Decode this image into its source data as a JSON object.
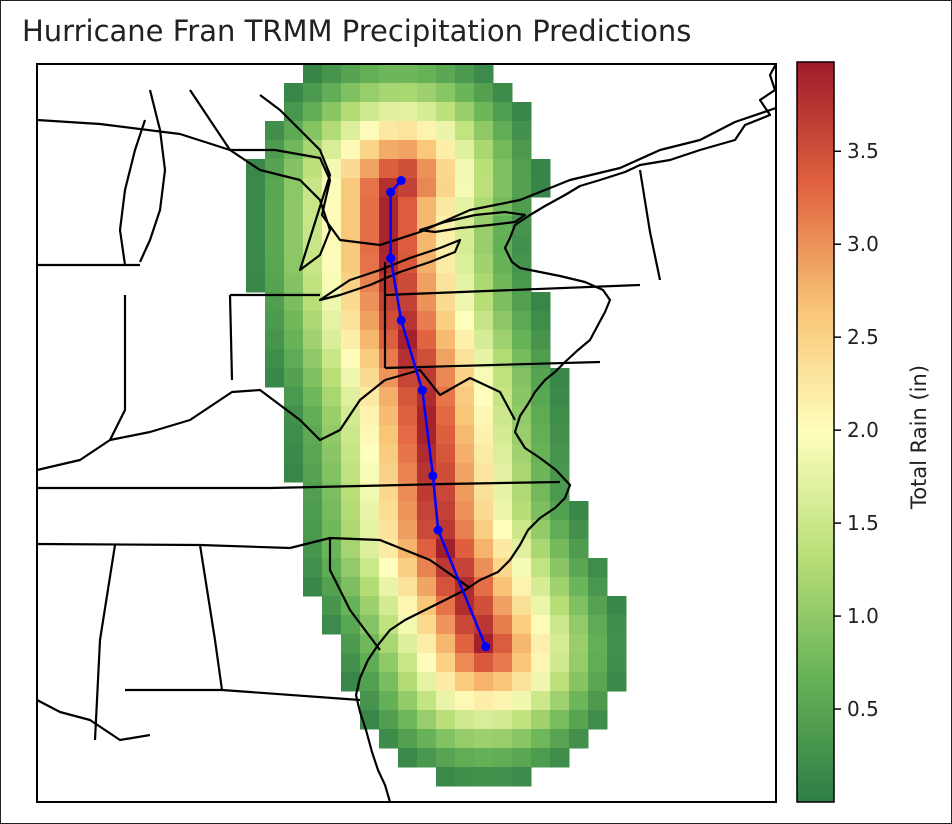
{
  "chart_data": {
    "type": "heatmap",
    "title": "Hurricane Fran TRMM Precipitation Predictions",
    "colorbar": {
      "label": "Total Rain (in)",
      "ticks": [
        "0.5",
        "1.0",
        "1.5",
        "2.0",
        "2.5",
        "3.0",
        "3.5"
      ],
      "tick_values": [
        0.5,
        1.0,
        1.5,
        2.0,
        2.5,
        3.0,
        3.5
      ],
      "range": [
        0.0,
        3.98
      ],
      "colormap": "RdYlGn_r",
      "colors": [
        "#2e7d45",
        "#66b257",
        "#b9df78",
        "#fefebd",
        "#f9c576",
        "#e1623f",
        "#a01b2b"
      ]
    },
    "storm_track": {
      "color": "#0000ff",
      "rain_peak_in": 3.9,
      "points": [
        {
          "lon": -80.1,
          "lat": 42.0
        },
        {
          "lon": -80.3,
          "lat": 41.85
        },
        {
          "lon": -80.3,
          "lat": 41.0
        },
        {
          "lon": -80.1,
          "lat": 40.2
        },
        {
          "lon": -79.7,
          "lat": 39.3
        },
        {
          "lon": -79.5,
          "lat": 38.2
        },
        {
          "lon": -79.4,
          "lat": 37.5
        },
        {
          "lon": -78.5,
          "lat": 36.0
        }
      ]
    },
    "extent": {
      "lon": [
        -87.0,
        -73.0
      ],
      "lat": [
        34.0,
        43.5
      ]
    }
  }
}
